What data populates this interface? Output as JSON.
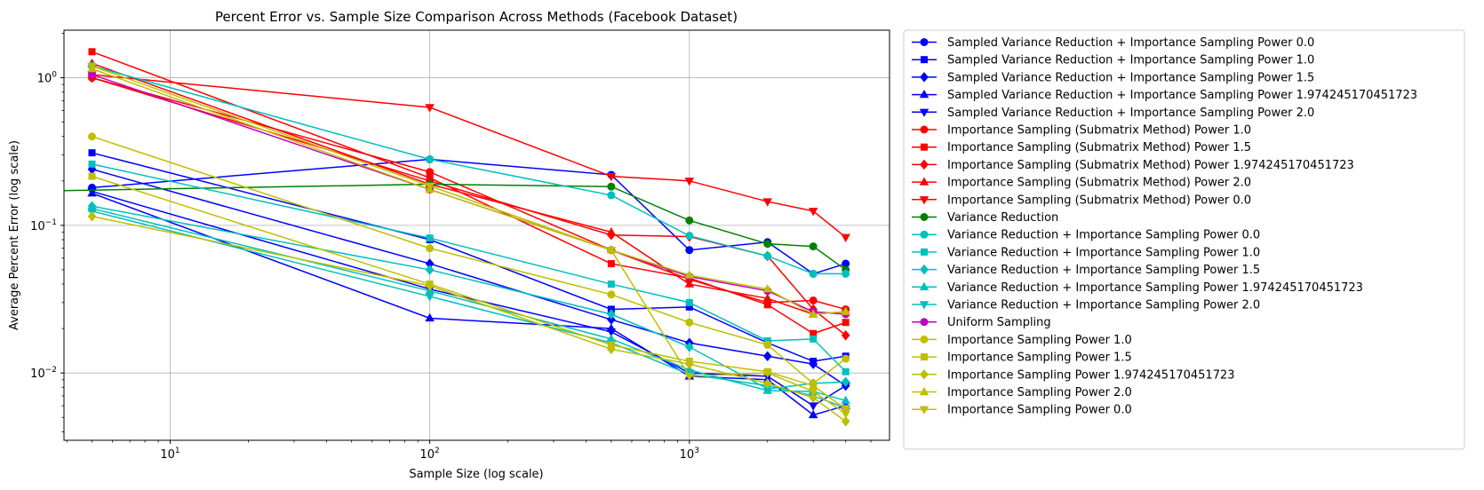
{
  "chart_data": {
    "type": "line",
    "title": "Percent Error vs. Sample Size Comparison Across Methods (Facebook Dataset)",
    "xlabel": "Sample Size (log scale)",
    "ylabel": "Average Percent Error (log scale)",
    "xscale": "log",
    "yscale": "log",
    "xlim": [
      3.9,
      5900
    ],
    "ylim": [
      0.0035,
      2.1
    ],
    "grid": true,
    "legend_position": "outside-right",
    "x_ticks": [
      {
        "value": 10,
        "base": "10",
        "exp": "1"
      },
      {
        "value": 100,
        "base": "10",
        "exp": "2"
      },
      {
        "value": 1000,
        "base": "10",
        "exp": "3"
      }
    ],
    "y_ticks": [
      {
        "value": 0.01,
        "base": "10",
        "exp": "−2"
      },
      {
        "value": 0.1,
        "base": "10",
        "exp": "−1"
      },
      {
        "value": 1,
        "base": "10",
        "exp": "0"
      }
    ],
    "x": [
      5,
      100,
      500,
      1000,
      2000,
      3000,
      4000
    ],
    "series": [
      {
        "name": "Sampled Variance Reduction + Importance Sampling Power 0.0",
        "color": "#0000ff",
        "marker": "circle",
        "values": [
          0.18,
          0.28,
          0.22,
          0.068,
          0.077,
          0.047,
          0.055
        ]
      },
      {
        "name": "Sampled Variance Reduction + Importance Sampling Power 1.0",
        "color": "#0000ff",
        "marker": "square",
        "values": [
          0.31,
          0.08,
          0.027,
          0.028,
          0.016,
          0.012,
          0.013
        ]
      },
      {
        "name": "Sampled Variance Reduction + Importance Sampling Power 1.5",
        "color": "#0000ff",
        "marker": "diamond",
        "values": [
          0.24,
          0.055,
          0.023,
          0.016,
          0.013,
          0.0115,
          0.0082
        ]
      },
      {
        "name": "Sampled Variance Reduction + Importance Sampling Power 1.974245170451723",
        "color": "#0000ff",
        "marker": "triangle-up",
        "values": [
          0.165,
          0.0235,
          0.02,
          0.0095,
          0.009,
          0.0052,
          0.006
        ]
      },
      {
        "name": "Sampled Variance Reduction + Importance Sampling Power 2.0",
        "color": "#0000ff",
        "marker": "triangle-down",
        "values": [
          0.17,
          0.037,
          0.019,
          0.01,
          0.0095,
          0.006,
          0.0082
        ]
      },
      {
        "name": "Importance Sampling (Submatrix Method) Power 1.0",
        "color": "#ff0000",
        "marker": "circle",
        "values": [
          1.0,
          0.23,
          0.068,
          0.043,
          0.03,
          0.031,
          0.027
        ]
      },
      {
        "name": "Importance Sampling (Submatrix Method) Power 1.5",
        "color": "#ff0000",
        "marker": "square",
        "values": [
          1.5,
          0.21,
          0.055,
          0.044,
          0.029,
          0.0185,
          0.022
        ]
      },
      {
        "name": "Importance Sampling (Submatrix Method) Power 1.974245170451723",
        "color": "#ff0000",
        "marker": "diamond",
        "values": [
          1.0,
          0.2,
          0.086,
          0.084,
          0.062,
          0.027,
          0.018
        ]
      },
      {
        "name": "Importance Sampling (Submatrix Method) Power 2.0",
        "color": "#ff0000",
        "marker": "triangle-up",
        "values": [
          1.25,
          0.19,
          0.09,
          0.04,
          0.032,
          0.025,
          0.026
        ]
      },
      {
        "name": "Importance Sampling (Submatrix Method) Power 0.0",
        "color": "#ff0000",
        "marker": "triangle-down",
        "values": [
          1.05,
          0.63,
          0.215,
          0.2,
          0.145,
          0.125,
          0.083
        ]
      },
      {
        "name": "Variance Reduction",
        "color": "#008000",
        "marker": "circle",
        "x": [
          3.9,
          100,
          500,
          1000,
          2000,
          3000,
          4000
        ],
        "values": [
          0.172,
          0.19,
          0.183,
          0.108,
          0.075,
          0.072,
          0.05
        ]
      },
      {
        "name": "Variance Reduction + Importance Sampling Power 0.0",
        "color": "#00bfbf",
        "marker": "circle",
        "values": [
          1.2,
          0.28,
          0.16,
          0.085,
          0.062,
          0.047,
          0.047
        ]
      },
      {
        "name": "Variance Reduction + Importance Sampling Power 1.0",
        "color": "#00bfbf",
        "marker": "square",
        "values": [
          0.26,
          0.082,
          0.04,
          0.03,
          0.0165,
          0.017,
          0.0102
        ]
      },
      {
        "name": "Variance Reduction + Importance Sampling Power 1.5",
        "color": "#00bfbf",
        "marker": "diamond",
        "values": [
          0.135,
          0.05,
          0.025,
          0.015,
          0.0078,
          0.0085,
          0.0087
        ]
      },
      {
        "name": "Variance Reduction + Importance Sampling Power 1.974245170451723",
        "color": "#00bfbf",
        "marker": "triangle-up",
        "values": [
          0.13,
          0.036,
          0.017,
          0.0105,
          0.0076,
          0.0075,
          0.0065
        ]
      },
      {
        "name": "Variance Reduction + Importance Sampling Power 2.0",
        "color": "#00bfbf",
        "marker": "triangle-down",
        "values": [
          0.125,
          0.033,
          0.016,
          0.0098,
          0.0082,
          0.007,
          0.0058
        ]
      },
      {
        "name": "Uniform Sampling",
        "color": "#bf00bf",
        "marker": "circle",
        "values": [
          1.05,
          0.175,
          0.068,
          0.045,
          0.036,
          0.026,
          0.025
        ]
      },
      {
        "name": "Importance Sampling Power 1.0",
        "color": "#bfbf00",
        "marker": "circle",
        "values": [
          0.4,
          0.07,
          0.034,
          0.022,
          0.0155,
          0.0085,
          0.0125
        ]
      },
      {
        "name": "Importance Sampling Power 1.5",
        "color": "#bfbf00",
        "marker": "square",
        "values": [
          0.215,
          0.04,
          0.0155,
          0.012,
          0.0102,
          0.0082,
          0.0057
        ]
      },
      {
        "name": "Importance Sampling Power 1.974245170451723",
        "color": "#bfbf00",
        "marker": "diamond",
        "values": [
          0.115,
          0.039,
          0.0145,
          0.0115,
          0.0085,
          0.0068,
          0.0047
        ]
      },
      {
        "name": "Importance Sampling Power 2.0",
        "color": "#bfbf00",
        "marker": "triangle-up",
        "values": [
          1.15,
          0.175,
          0.068,
          0.046,
          0.037,
          0.025,
          0.026
        ]
      },
      {
        "name": "Importance Sampling Power 0.0",
        "color": "#bfbf00",
        "marker": "triangle-down",
        "values": [
          1.2,
          0.185,
          0.068,
          0.0095,
          0.01,
          0.0075,
          0.0053
        ]
      }
    ]
  }
}
